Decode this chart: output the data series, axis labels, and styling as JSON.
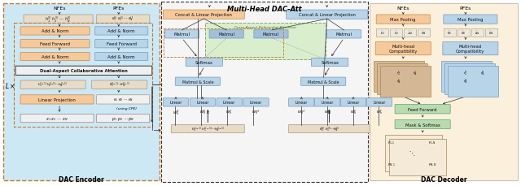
{
  "title_center": "Multi-Head DAC-Att",
  "title_encoder": "DAC Encoder",
  "title_decoder": "DAC Decoder",
  "blue_bg": "#cce8f4",
  "yellow_bg": "#faf0dc",
  "orange_box": "#f5c99a",
  "blue_box": "#b8d4e8",
  "blue_box2": "#a0c0dc",
  "green_bg": "#d4ecca",
  "tan_box": "#d4b896",
  "white_box": "#ffffff",
  "border_orange_dashed": "#cc7722",
  "border_dark": "#333333",
  "border_blue": "#7799bb",
  "border_green": "#88aa66",
  "text_dark": "#222222"
}
